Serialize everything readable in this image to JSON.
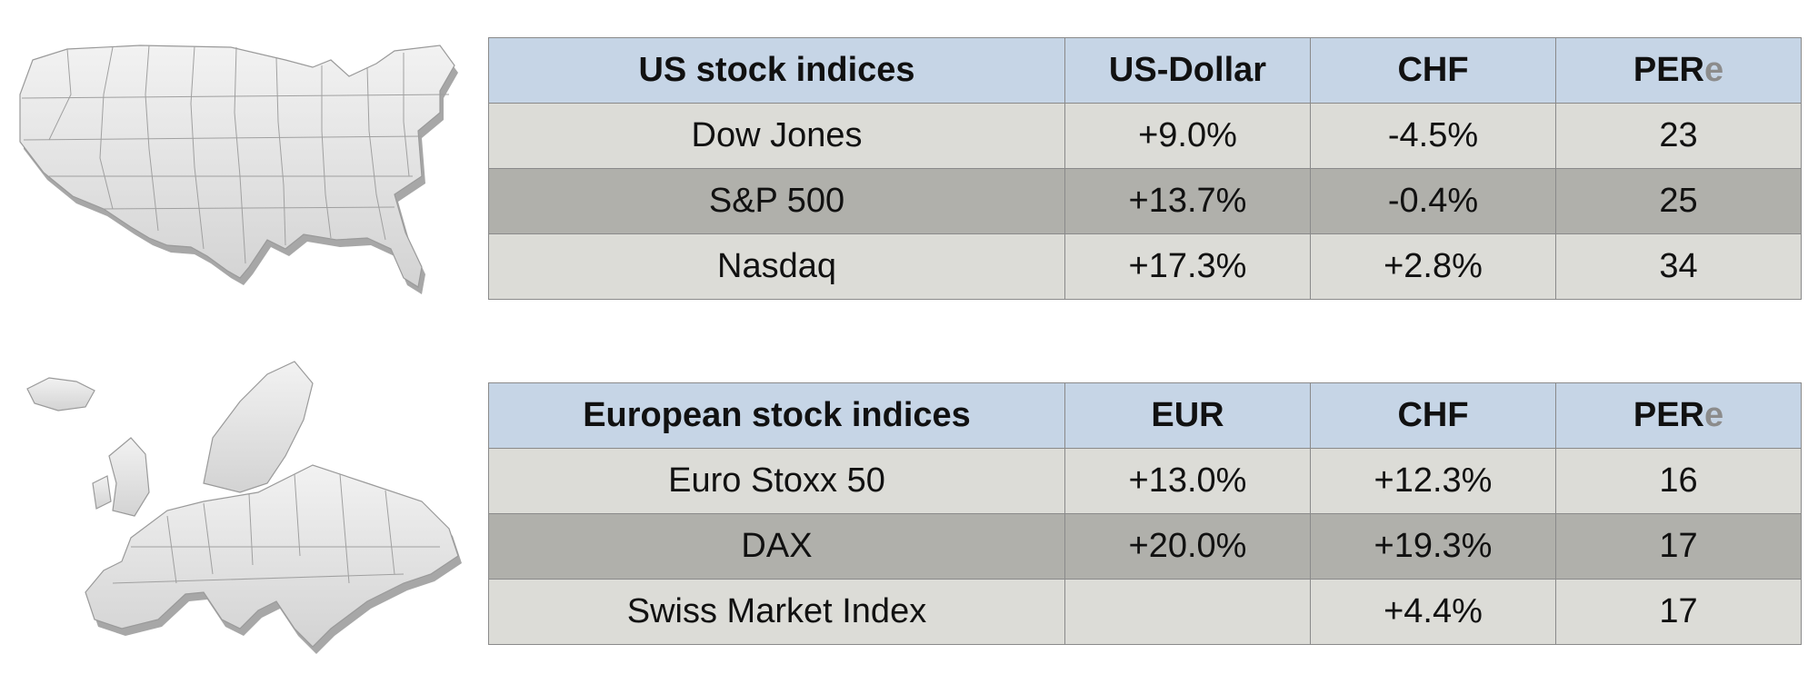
{
  "us": {
    "headers": {
      "name": "US stock indices",
      "currency": "US-Dollar",
      "chf": "CHF",
      "per": "PER",
      "per_suffix": "e"
    },
    "rows": [
      {
        "name": "Dow Jones",
        "currency": "+9.0%",
        "chf": "-4.5%",
        "per": "23"
      },
      {
        "name": "S&P 500",
        "currency": "+13.7%",
        "chf": "-0.4%",
        "per": "25"
      },
      {
        "name": "Nasdaq",
        "currency": "+17.3%",
        "chf": "+2.8%",
        "per": "34"
      }
    ]
  },
  "eu": {
    "headers": {
      "name": "European stock indices",
      "currency": "EUR",
      "chf": "CHF",
      "per": "PER",
      "per_suffix": "e"
    },
    "rows": [
      {
        "name": "Euro Stoxx 50",
        "currency": "+13.0%",
        "chf": "+12.3%",
        "per": "16"
      },
      {
        "name": "DAX",
        "currency": "+20.0%",
        "chf": "+19.3%",
        "per": "17"
      },
      {
        "name": "Swiss Market Index",
        "currency": "",
        "chf": "+4.4%",
        "per": "17"
      }
    ]
  },
  "colors": {
    "header_bg": "#c6d5e6",
    "row_light": "#dcdcd7",
    "row_dark": "#b0b0ab",
    "positive": "#1f9e40",
    "negative": "#d0203d"
  },
  "icons": {
    "us_map": "usa-map-icon",
    "eu_map": "europe-map-icon"
  }
}
